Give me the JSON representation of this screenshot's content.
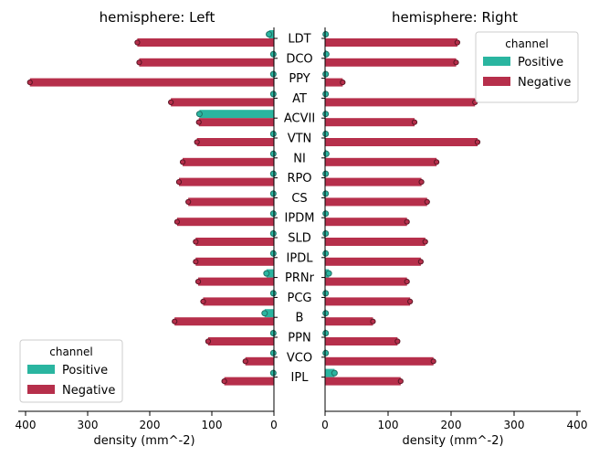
{
  "chart_data": [
    {
      "type": "bar",
      "orientation": "horizontal",
      "direction": "reversed",
      "title": "hemisphere: Left",
      "xlabel": "density (mm^-2)",
      "xlim": [
        0,
        400
      ],
      "xticks": [
        "400",
        "300",
        "200",
        "100",
        "0"
      ],
      "categories": [
        "LDT",
        "DCO",
        "PPY",
        "AT",
        "ACVII",
        "VTN",
        "NI",
        "RPO",
        "CS",
        "IPDM",
        "SLD",
        "IPDL",
        "PRNr",
        "PCG",
        "B",
        "PPN",
        "VCO",
        "IPL"
      ],
      "series": [
        {
          "name": "Positive",
          "values": [
            8,
            1,
            1,
            1,
            120,
            1,
            1,
            1,
            1,
            1,
            1,
            1,
            12,
            1,
            15,
            1,
            1,
            1
          ]
        },
        {
          "name": "Negative",
          "values": [
            220,
            217,
            393,
            166,
            121,
            124,
            147,
            153,
            138,
            156,
            126,
            126,
            122,
            114,
            160,
            106,
            46,
            80
          ]
        }
      ],
      "legend": {
        "title": "channel",
        "position": "lower-left"
      },
      "grid": false
    },
    {
      "type": "bar",
      "orientation": "horizontal",
      "title": "hemisphere: Right",
      "xlabel": "density (mm^-2)",
      "xlim": [
        0,
        400
      ],
      "xticks": [
        "0",
        "100",
        "200",
        "300",
        "400"
      ],
      "categories": [
        "LDT",
        "DCO",
        "PPY",
        "AT",
        "ACVII",
        "VTN",
        "NI",
        "RPO",
        "CS",
        "IPDM",
        "SLD",
        "IPDL",
        "PRNr",
        "PCG",
        "B",
        "PPN",
        "VCO",
        "IPL"
      ],
      "series": [
        {
          "name": "Positive",
          "values": [
            1,
            2,
            1,
            1,
            1,
            1,
            2,
            1,
            1,
            1,
            1,
            1,
            6,
            1,
            1,
            1,
            1,
            15
          ]
        },
        {
          "name": "Negative",
          "values": [
            210,
            208,
            28,
            238,
            142,
            242,
            177,
            153,
            162,
            130,
            159,
            152,
            130,
            135,
            76,
            115,
            172,
            120
          ]
        }
      ],
      "legend": {
        "title": "channel",
        "position": "upper-right"
      },
      "grid": false
    }
  ],
  "colors": {
    "positive": "#2ab5a0",
    "negative": "#b62f4b",
    "axis": "#000000"
  }
}
